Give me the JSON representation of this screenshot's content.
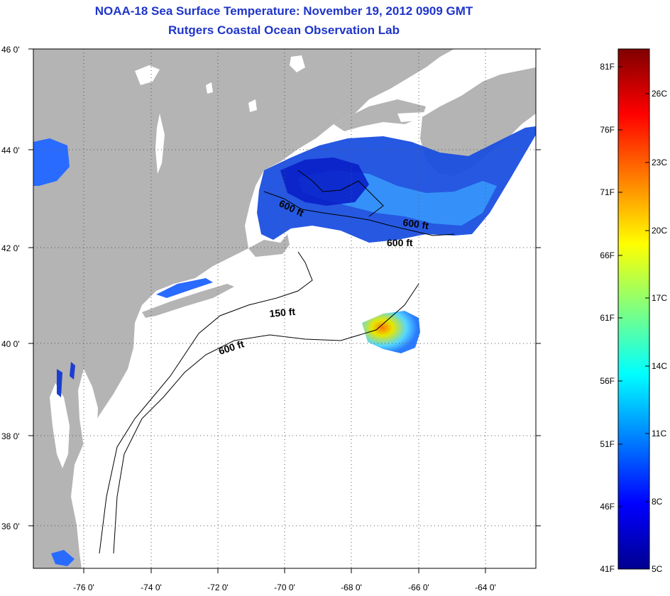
{
  "header": {
    "title": "NOAA-18 Sea Surface Temperature:  November 19, 2012 0909 GMT",
    "subtitle": "Rutgers Coastal Ocean Observation Lab"
  },
  "map": {
    "lat_labels": [
      "46 0'",
      "44 0'",
      "42 0'",
      "40 0'",
      "38 0'",
      "36 0'"
    ],
    "lon_labels": [
      "-76 0'",
      "-74 0'",
      "-72 0'",
      "-70 0'",
      "-68 0'",
      "-66 0'",
      "-64 0'"
    ],
    "contour_labels": [
      "600 ft",
      "600 ft",
      "600 ft",
      "150 ft",
      "600 ft"
    ],
    "land_color": "#b4b4b4",
    "ocean_color": "#ffffff"
  },
  "colorbar": {
    "fahrenheit_labels": [
      "81F",
      "76F",
      "71F",
      "66F",
      "61F",
      "56F",
      "51F",
      "46F",
      "41F"
    ],
    "celsius_labels": [
      "26C",
      "23C",
      "20C",
      "17C",
      "14C",
      "11C",
      "8C",
      "5C"
    ]
  }
}
